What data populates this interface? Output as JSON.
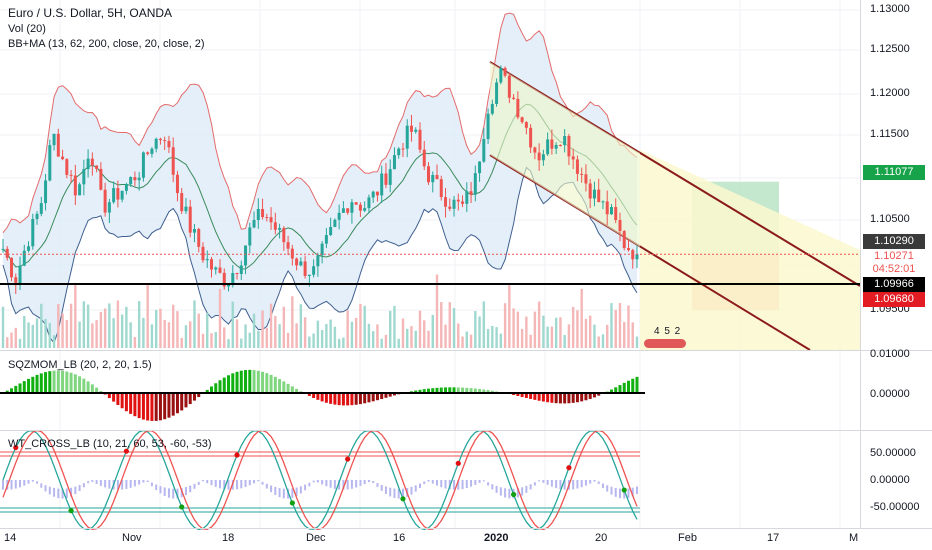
{
  "chart_header": {
    "symbol_line": "Euro / U.S. Dollar, 5H, OANDA",
    "vol_line": "Vol (20)",
    "bbma_line": "BB+MA (13, 62, 200, close, 20, close, 2)"
  },
  "price_axis": {
    "ticks": [
      "1.13000",
      "1.12500",
      "1.12000",
      "1.11500",
      "1.10500",
      "1.09500"
    ],
    "tags": {
      "target": "1.11077",
      "last": "1.10290",
      "prev": "1.10271",
      "countdown": "04:52:01",
      "level": "1.09966",
      "stop": "1.09680"
    },
    "colors": {
      "target": "#17a34a",
      "last": "#3a3a3a",
      "prev": "#ef5350",
      "level": "#000000",
      "stop": "#e31b23"
    }
  },
  "volume_badge": "4 5 2",
  "sqz_indicator": {
    "label": "SQZMOM_LB (20, 2, 20, 1.5)",
    "ticks": [
      "0.01000",
      "0.00000"
    ]
  },
  "wt_indicator": {
    "label": "WT_CROSS_LB (10, 21, 60, 53, -60, -53)",
    "ticks": [
      "50.00000",
      "0.00000",
      "-50.00000"
    ]
  },
  "time_axis": {
    "labels": [
      "14",
      "Nov",
      "18",
      "Dec",
      "16",
      "2020",
      "20",
      "Feb",
      "17",
      "M"
    ]
  },
  "chart_data": {
    "type": "candlestick",
    "instrument": "Euro / U.S. Dollar",
    "timeframe": "5H",
    "source": "OANDA",
    "ylim": [
      1.0925,
      1.1305
    ],
    "drawn_levels": {
      "horizontal_line": 1.09966,
      "long_position_target": 1.11077,
      "long_position_entry": 1.1029,
      "long_position_stop": 1.0968
    },
    "close_path": [
      1.1035,
      1.1002,
      1.1045,
      1.108,
      1.116,
      1.1125,
      1.1095,
      1.1148,
      1.108,
      1.1092,
      1.1105,
      1.112,
      1.115,
      1.116,
      1.11,
      1.106,
      1.103,
      1.101,
      1.1,
      1.102,
      1.106,
      1.1075,
      1.1055,
      1.1035,
      1.1015,
      1.101,
      1.104,
      1.107,
      1.109,
      1.108,
      1.1095,
      1.112,
      1.115,
      1.1165,
      1.112,
      1.11,
      1.1085,
      1.108,
      1.111,
      1.119,
      1.1225,
      1.12,
      1.117,
      1.1135,
      1.115,
      1.116,
      1.113,
      1.1105,
      1.1085,
      1.107,
      1.104,
      1.1029
    ]
  }
}
